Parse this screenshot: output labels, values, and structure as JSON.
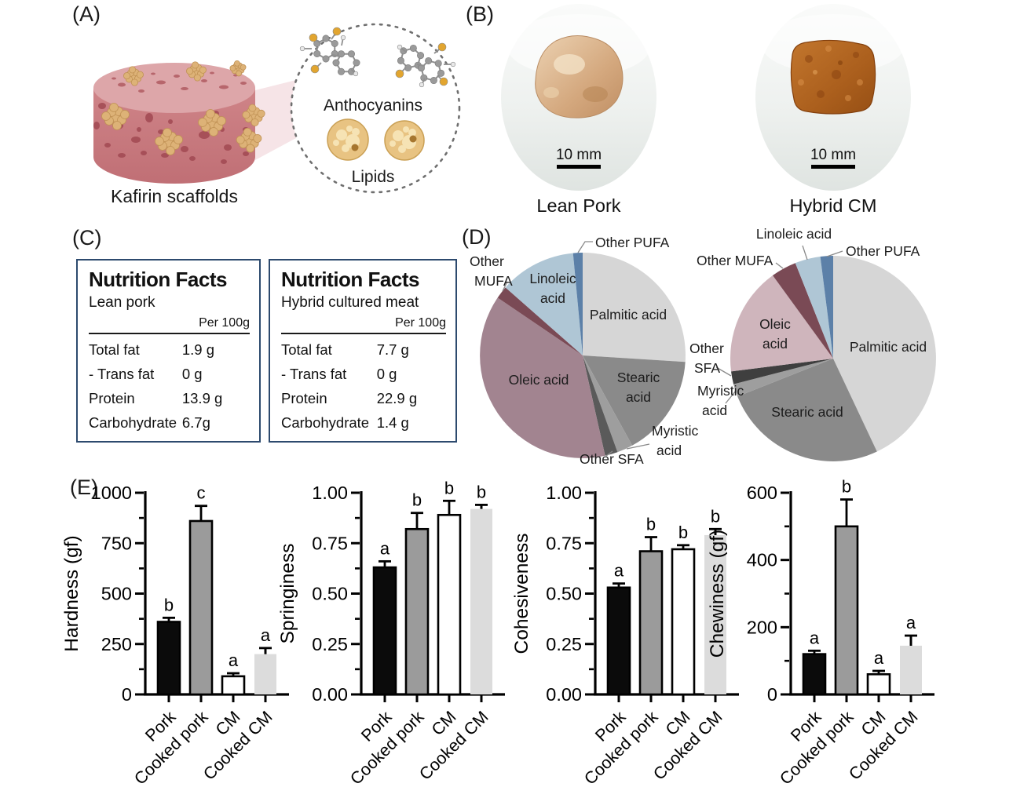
{
  "figure": {
    "panel_tags": {
      "a": "(A)",
      "b": "(B)",
      "c": "(C)",
      "d": "(D)",
      "e": "(E)"
    }
  },
  "panel_a": {
    "scaffold_label": "Kafirin scaffolds",
    "anthocyanins_label": "Anthocyanins",
    "lipids_label": "Lipids"
  },
  "panel_b": {
    "left": {
      "caption": "Lean Pork",
      "scale_bar": "10 mm"
    },
    "right": {
      "caption": "Hybrid CM",
      "scale_bar": "10 mm"
    }
  },
  "panel_c": {
    "border_color": "#2d4a6e",
    "tables": [
      {
        "title": "Nutrition Facts",
        "subtitle": "Lean pork",
        "column_header": "Per 100g",
        "rows": [
          {
            "label": "Total fat",
            "value": "1.9 g"
          },
          {
            "label": "- Trans fat",
            "value": "0 g"
          },
          {
            "label": "Protein",
            "value": "13.9 g"
          },
          {
            "label": "Carbohydrate",
            "value": "6.7g"
          }
        ]
      },
      {
        "title": "Nutrition Facts",
        "subtitle": "Hybrid cultured meat",
        "column_header": "Per 100g",
        "rows": [
          {
            "label": "Total fat",
            "value": "7.7 g"
          },
          {
            "label": "- Trans fat",
            "value": "0 g"
          },
          {
            "label": "Protein",
            "value": "22.9 g"
          },
          {
            "label": "Carbohydrate",
            "value": "1.4 g"
          }
        ]
      }
    ]
  },
  "chart_data": [
    {
      "id": "fatty-acid-pie-lean-pork",
      "type": "pie",
      "legend_position": "labels-on-chart",
      "slices": [
        {
          "label": "Palmitic acid",
          "value": 26,
          "color": "#d6d6d6"
        },
        {
          "label": "Stearic acid",
          "value": 16,
          "color": "#8a8a8a"
        },
        {
          "label": "Myristic acid",
          "value": 2.5,
          "color": "#9e9e9e"
        },
        {
          "label": "Other SFA",
          "value": 2,
          "color": "#5a5a5a"
        },
        {
          "label": "Oleic acid",
          "value": 38,
          "color": "#a28490"
        },
        {
          "label": "Other MUFA",
          "value": 2,
          "color": "#7a4a55"
        },
        {
          "label": "Linoleic acid",
          "value": 12,
          "color": "#afc6d5"
        },
        {
          "label": "Other PUFA",
          "value": 1.5,
          "color": "#5c80a8"
        }
      ]
    },
    {
      "id": "fatty-acid-pie-hybrid-cm",
      "type": "pie",
      "legend_position": "labels-on-chart",
      "slices": [
        {
          "label": "Palmitic acid",
          "value": 43,
          "color": "#d6d6d6"
        },
        {
          "label": "Stearic acid",
          "value": 26,
          "color": "#8a8a8a"
        },
        {
          "label": "Myristic acid",
          "value": 2,
          "color": "#9e9e9e"
        },
        {
          "label": "Other SFA",
          "value": 2,
          "color": "#3f3f3f"
        },
        {
          "label": "Oleic acid",
          "value": 17,
          "color": "#cfb5bc"
        },
        {
          "label": "Other MUFA",
          "value": 4,
          "color": "#7a4a55"
        },
        {
          "label": "Linoleic acid",
          "value": 4,
          "color": "#afc6d5"
        },
        {
          "label": "Other PUFA",
          "value": 2,
          "color": "#5c80a8"
        }
      ]
    },
    {
      "id": "hardness",
      "type": "bar",
      "ylabel": "Hardness (gf)",
      "ylim": [
        0,
        1000
      ],
      "yticks": [
        0,
        250,
        500,
        750,
        1000
      ],
      "ytick_labels": [
        "0",
        "250",
        "500",
        "750",
        "1000"
      ],
      "minor_tick_step": 125,
      "categories": [
        "Pork",
        "Cooked pork",
        "CM",
        "Cooked CM"
      ],
      "values": [
        360,
        860,
        90,
        200
      ],
      "errors": [
        20,
        75,
        15,
        30
      ],
      "sig_letters": [
        "b",
        "c",
        "a",
        "a"
      ]
    },
    {
      "id": "springiness",
      "type": "bar",
      "ylabel": "Springiness",
      "ylim": [
        0,
        1
      ],
      "yticks": [
        0,
        0.25,
        0.5,
        0.75,
        1
      ],
      "ytick_labels": [
        "0.00",
        "0.25",
        "0.50",
        "0.75",
        "1.00"
      ],
      "minor_tick_step": 0.125,
      "categories": [
        "Pork",
        "Cooked pork",
        "CM",
        "Cooked CM"
      ],
      "values": [
        0.63,
        0.82,
        0.89,
        0.92
      ],
      "errors": [
        0.03,
        0.08,
        0.07,
        0.02
      ],
      "sig_letters": [
        "a",
        "b",
        "b",
        "b"
      ]
    },
    {
      "id": "cohesiveness",
      "type": "bar",
      "ylabel": "Cohesiveness",
      "ylim": [
        0,
        1
      ],
      "yticks": [
        0,
        0.25,
        0.5,
        0.75,
        1
      ],
      "ytick_labels": [
        "0.00",
        "0.25",
        "0.50",
        "0.75",
        "1.00"
      ],
      "minor_tick_step": 0.125,
      "categories": [
        "Pork",
        "Cooked pork",
        "CM",
        "Cooked CM"
      ],
      "values": [
        0.53,
        0.71,
        0.72,
        0.79
      ],
      "errors": [
        0.02,
        0.07,
        0.02,
        0.03
      ],
      "sig_letters": [
        "a",
        "b",
        "b",
        "b"
      ]
    },
    {
      "id": "chewiness",
      "type": "bar",
      "ylabel": "Chewiness (gf)",
      "ylim": [
        0,
        600
      ],
      "yticks": [
        0,
        200,
        400,
        600
      ],
      "ytick_labels": [
        "0",
        "200",
        "400",
        "600"
      ],
      "minor_tick_step": 100,
      "categories": [
        "Pork",
        "Cooked pork",
        "CM",
        "Cooked CM"
      ],
      "values": [
        120,
        500,
        60,
        145
      ],
      "errors": [
        10,
        80,
        10,
        30
      ],
      "sig_letters": [
        "a",
        "b",
        "a",
        "a"
      ]
    }
  ],
  "bar_style": {
    "fill_colors": [
      "#0b0b0b",
      "#9b9b9b",
      "#ffffff",
      "#dcdcdc"
    ],
    "stroke_colors": [
      "#000000",
      "#000000",
      "#000000",
      "none"
    ]
  }
}
